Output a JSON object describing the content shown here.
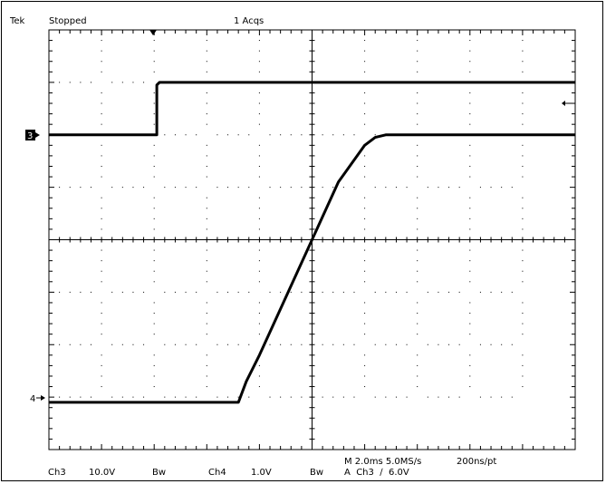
{
  "header": {
    "brand": "Tek",
    "status": "Stopped",
    "acquisitions": "1 Acqs"
  },
  "footer": {
    "ch3_label": "Ch3",
    "ch3_scale": "10.0V",
    "ch3_bw": "Bw",
    "ch4_label": "Ch4",
    "ch4_scale": "1.0V",
    "ch4_bw": "Bw",
    "timebase": "M 2.0ms 5.0MS/s",
    "resolution": "200ns/pt",
    "trigger": "A  Ch3  ∕  6.0V"
  },
  "markers": {
    "ch3": "3",
    "ch4": "4"
  },
  "chart_data": {
    "type": "line",
    "grid": true,
    "x_divisions": 10,
    "y_divisions": 8,
    "xlim": [
      0,
      10
    ],
    "ylim": [
      -4,
      4
    ],
    "series": [
      {
        "color": "#000000",
        "x": [
          0,
          2.05,
          2.05,
          2.1,
          10
        ],
        "y": [
          2.0,
          2.0,
          2.95,
          3.0,
          3.0
        ]
      },
      {
        "color": "#000000",
        "x": [
          0,
          3.6,
          3.75,
          4.0,
          4.5,
          5.0,
          5.5,
          6.0,
          6.2,
          6.4,
          6.6,
          10
        ],
        "y": [
          -3.1,
          -3.1,
          -2.7,
          -2.2,
          -1.1,
          0.0,
          1.1,
          1.8,
          1.95,
          2.0,
          2.0,
          2.0
        ]
      }
    ]
  }
}
